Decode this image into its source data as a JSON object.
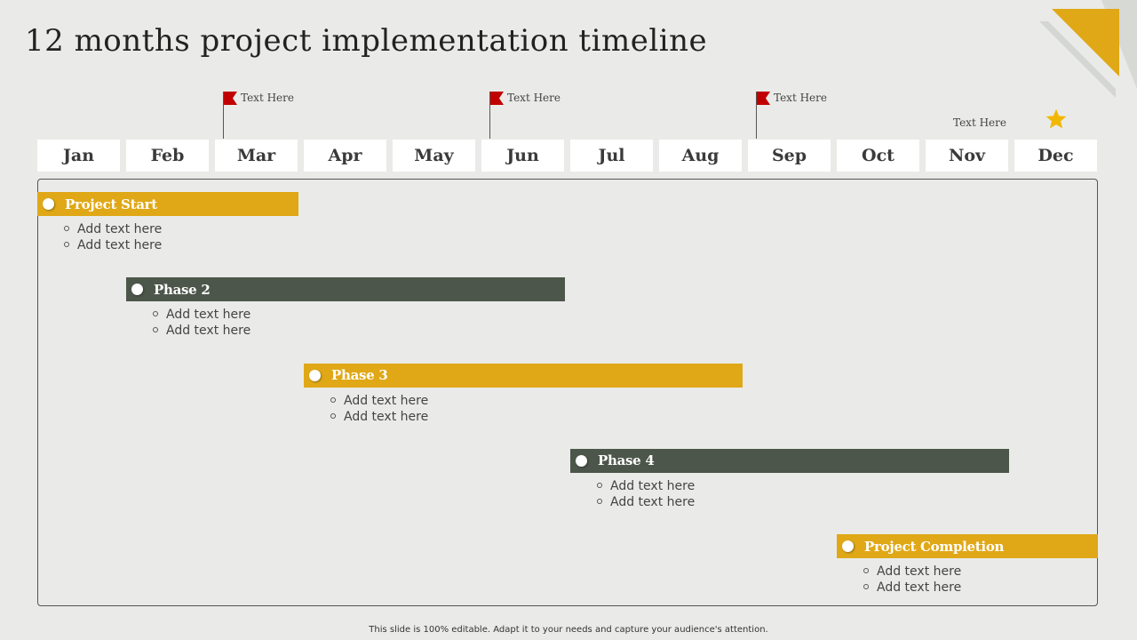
{
  "title": "12 months project implementation timeline",
  "months": [
    "Jan",
    "Feb",
    "Mar",
    "Apr",
    "May",
    "Jun",
    "Jul",
    "Aug",
    "Sep",
    "Oct",
    "Nov",
    "Dec"
  ],
  "milestones": [
    {
      "month": "Feb",
      "label": "Text Here"
    },
    {
      "month": "May",
      "label": "Text Here"
    },
    {
      "month": "Aug",
      "label": "Text Here"
    }
  ],
  "final_milestone": {
    "month": "Dec",
    "label": "Text Here",
    "icon": "star-icon"
  },
  "phases": [
    {
      "name": "Project Start",
      "start": "Jan",
      "end": "Mar",
      "color": "#e0a817",
      "items": [
        "Add text here",
        "Add text here"
      ]
    },
    {
      "name": "Phase 2",
      "start": "Feb",
      "end": "Jun",
      "color": "#4d564b",
      "items": [
        "Add text here",
        "Add text here"
      ]
    },
    {
      "name": "Phase 3",
      "start": "Apr",
      "end": "Aug",
      "color": "#e0a817",
      "items": [
        "Add text here",
        "Add text here"
      ]
    },
    {
      "name": "Phase 4",
      "start": "Jul",
      "end": "Nov",
      "color": "#4d564b",
      "items": [
        "Add text here",
        "Add text here"
      ]
    },
    {
      "name": "Project Completion",
      "start": "Oct",
      "end": "Dec",
      "color": "#e0a817",
      "items": [
        "Add text here",
        "Add text here"
      ]
    }
  ],
  "colors": {
    "accent": "#e0a817",
    "dark": "#4d564b",
    "flag": "#c00000",
    "star": "#f2b705",
    "background": "#eaebe8"
  },
  "footer": "This slide is 100% editable. Adapt it to your needs and capture your audience's attention."
}
